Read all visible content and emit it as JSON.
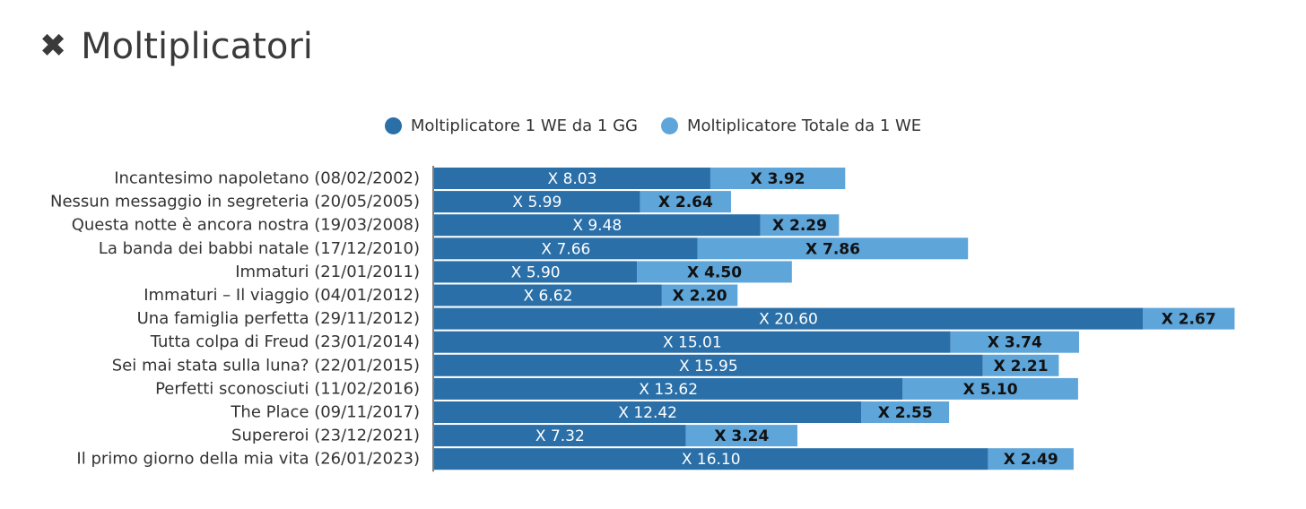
{
  "header": {
    "icon": "close-x-icon",
    "icon_glyph": "✖",
    "title": "Moltiplicatori"
  },
  "colors": {
    "series1": "#2a6fa8",
    "series2": "#5ea5da",
    "text": "#333333",
    "axis": "#555555"
  },
  "chart_data": {
    "type": "bar",
    "orientation": "horizontal",
    "stacked": true,
    "title": "Moltiplicatori",
    "legend_position": "top-center",
    "grid": false,
    "xlim": [
      0,
      24
    ],
    "categories": [
      "Incantesimo napoletano (08/02/2002)",
      "Nessun messaggio in segreteria (20/05/2005)",
      "Questa notte è ancora nostra (19/03/2008)",
      "La banda dei babbi natale (17/12/2010)",
      "Immaturi (21/01/2011)",
      "Immaturi – Il viaggio (04/01/2012)",
      "Una famiglia perfetta (29/11/2012)",
      "Tutta colpa di Freud (23/01/2014)",
      "Sei mai stata sulla luna? (22/01/2015)",
      "Perfetti sconosciuti (11/02/2016)",
      "The Place (09/11/2017)",
      "Supereroi (23/12/2021)",
      "Il primo giorno della mia vita (26/01/2023)"
    ],
    "series": [
      {
        "name": "Moltiplicatore 1 WE da 1 GG",
        "values": [
          8.03,
          5.99,
          9.48,
          7.66,
          5.9,
          6.62,
          20.6,
          15.01,
          15.95,
          13.62,
          12.42,
          7.32,
          16.1
        ],
        "labels": [
          "X 8.03",
          "X 5.99",
          "X 9.48",
          "X 7.66",
          "X 5.90",
          "X 6.62",
          "X 20.60",
          "X 15.01",
          "X 15.95",
          "X 13.62",
          "X 12.42",
          "X 7.32",
          "X 16.10"
        ]
      },
      {
        "name": "Moltiplicatore Totale da 1 WE",
        "values": [
          3.92,
          2.64,
          2.29,
          7.86,
          4.5,
          2.2,
          2.67,
          3.74,
          2.21,
          5.1,
          2.55,
          3.24,
          2.49
        ],
        "labels": [
          "X 3.92",
          "X 2.64",
          "X 2.29",
          "X 7.86",
          "X 4.50",
          "X 2.20",
          "X 2.67",
          "X 3.74",
          "X 2.21",
          "X 5.10",
          "X 2.55",
          "X 3.24",
          "X 2.49"
        ]
      }
    ]
  }
}
